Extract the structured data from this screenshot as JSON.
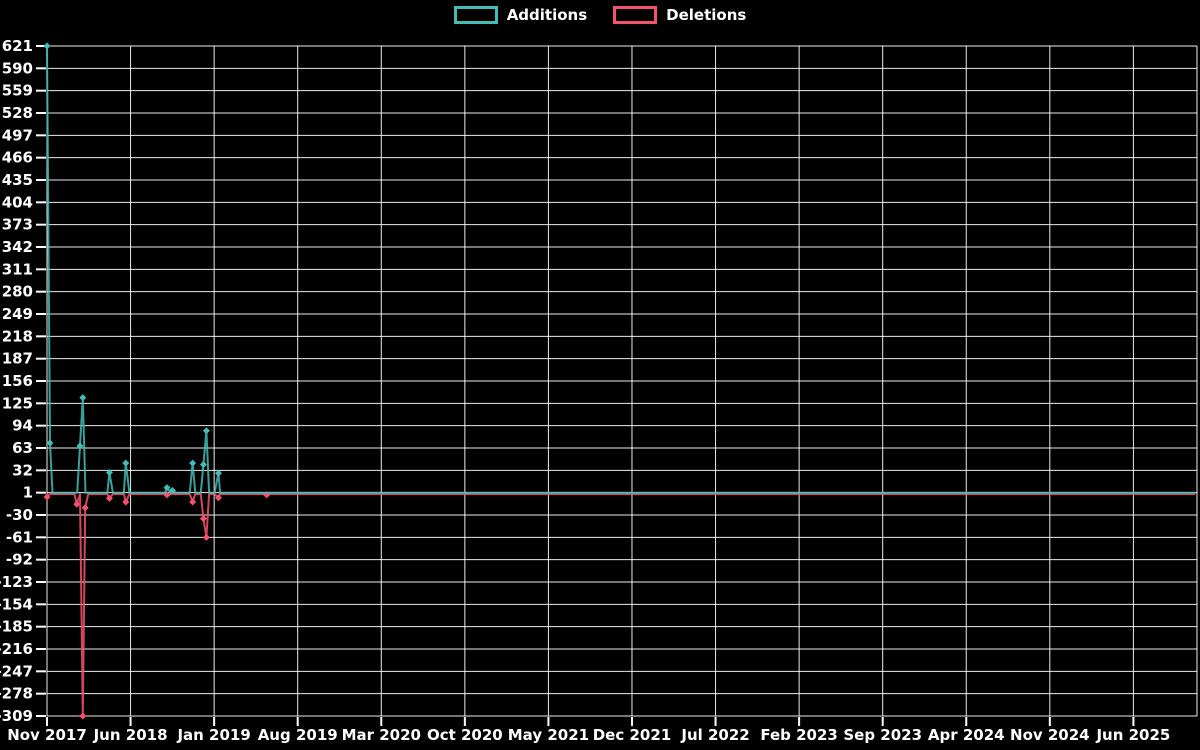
{
  "chart_data": {
    "type": "line",
    "title": "",
    "background": "#000000",
    "grid": {
      "show": true,
      "color": "#ffffff"
    },
    "legend": {
      "position": "top-center",
      "items": [
        {
          "label": "Additions",
          "color": "#43bcb4"
        },
        {
          "label": "Deletions",
          "color": "#f4536e"
        }
      ]
    },
    "y_axis": {
      "max": 621,
      "min": -309,
      "tick_step": 31,
      "ticks": [
        621,
        590,
        559,
        528,
        497,
        466,
        435,
        404,
        373,
        342,
        311,
        280,
        249,
        218,
        187,
        156,
        125,
        94,
        63,
        32,
        1,
        -30,
        -61,
        -92,
        -123,
        -154,
        -185,
        -216,
        -247,
        -278,
        -309
      ]
    },
    "x_axis": {
      "labels": [
        "Nov 2017",
        "Jun 2018",
        "Jan 2019",
        "Aug 2019",
        "Mar 2020",
        "Oct 2020",
        "May 2021",
        "Dec 2021",
        "Jul 2022",
        "Feb 2023",
        "Sep 2023",
        "Apr 2024",
        "Nov 2024",
        "Jun 2025"
      ],
      "months_between_labels": 7,
      "extent_months": 96.3
    },
    "point_interval_months": 0.2301,
    "series": [
      {
        "name": "Deletions",
        "color": "#f4536e",
        "baseline": -1,
        "spikes": [
          {
            "m": 0.0,
            "v": -5
          },
          {
            "m": 2.5,
            "v": -15
          },
          {
            "m": 3.0,
            "v": -309
          },
          {
            "m": 3.2,
            "v": -20
          },
          {
            "m": 5.23,
            "v": -7
          },
          {
            "m": 6.6,
            "v": -12
          },
          {
            "m": 10.05,
            "v": -2
          },
          {
            "m": 12.2,
            "v": -12
          },
          {
            "m": 13.1,
            "v": -35
          },
          {
            "m": 13.35,
            "v": -61
          },
          {
            "m": 14.36,
            "v": -6
          },
          {
            "m": 18.4,
            "v": -2
          }
        ]
      },
      {
        "name": "Additions",
        "color": "#43bcb4",
        "baseline": 1,
        "spikes": [
          {
            "m": 0.0,
            "v": 621
          },
          {
            "m": 0.25,
            "v": 70
          },
          {
            "m": 2.76,
            "v": 66
          },
          {
            "m": 3.0,
            "v": 133
          },
          {
            "m": 5.23,
            "v": 29
          },
          {
            "m": 6.6,
            "v": 42
          },
          {
            "m": 10.05,
            "v": 8
          },
          {
            "m": 10.5,
            "v": 4
          },
          {
            "m": 12.2,
            "v": 42
          },
          {
            "m": 13.1,
            "v": 40
          },
          {
            "m": 13.35,
            "v": 87
          },
          {
            "m": 14.36,
            "v": 28
          }
        ]
      }
    ]
  }
}
